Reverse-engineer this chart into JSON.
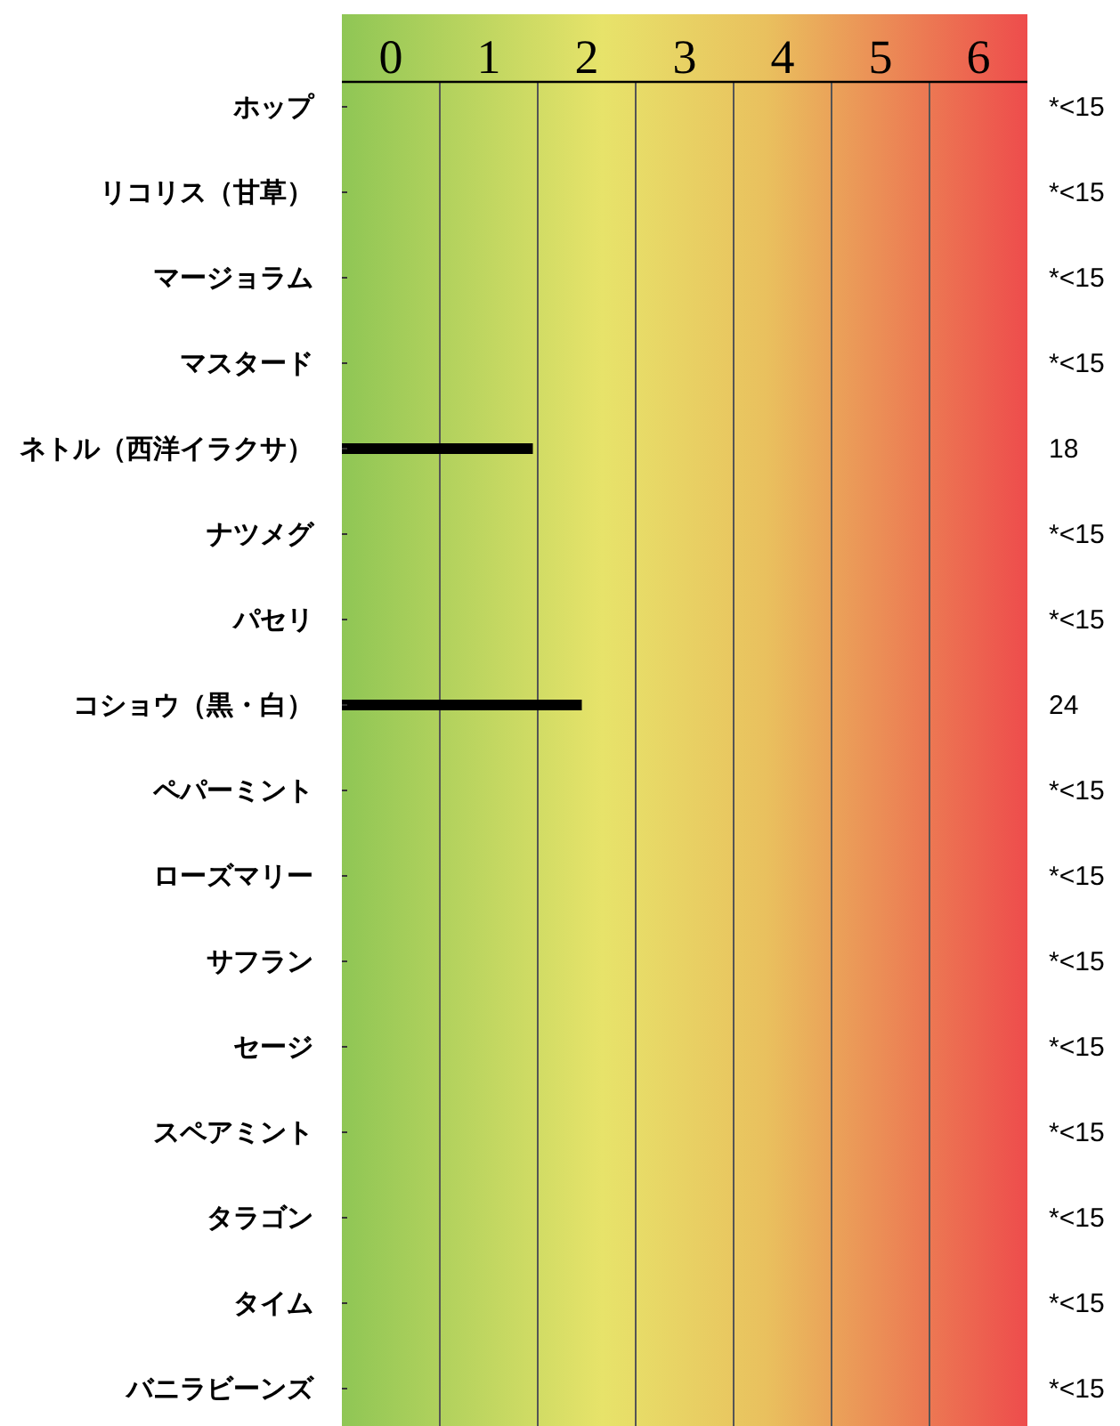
{
  "chart_data": {
    "type": "bar",
    "orientation": "horizontal",
    "categories": [
      "ホップ",
      "リコリス（甘草）",
      "マージョラム",
      "マスタード",
      "ネトル（西洋イラクサ）",
      "ナツメグ",
      "パセリ",
      "コショウ（黒・白）",
      "ペパーミント",
      "ローズマリー",
      "サフラン",
      "セージ",
      "スペアミント",
      "タラゴン",
      "タイム",
      "バニラビーンズ"
    ],
    "values": [
      0,
      0,
      0,
      0,
      1.95,
      0,
      0,
      2.45,
      0,
      0,
      0,
      0,
      0,
      0,
      0,
      0
    ],
    "annotations": [
      "*<15",
      "*<15",
      "*<15",
      "*<15",
      "18",
      "*<15",
      "*<15",
      "24",
      "*<15",
      "*<15",
      "*<15",
      "*<15",
      "*<15",
      "*<15",
      "*<15",
      "*<15"
    ],
    "color": "#000000",
    "xlim": [
      0,
      7
    ],
    "xticks": [
      {
        "value": 0,
        "label": null
      },
      {
        "value": 0.5,
        "label": "0"
      },
      {
        "value": 1,
        "label": null
      },
      {
        "value": 1.5,
        "label": "1"
      },
      {
        "value": 2,
        "label": null
      },
      {
        "value": 2.5,
        "label": "2"
      },
      {
        "value": 3,
        "label": null
      },
      {
        "value": 3.5,
        "label": "3"
      },
      {
        "value": 4,
        "label": null
      },
      {
        "value": 4.5,
        "label": "4"
      },
      {
        "value": 5,
        "label": null
      },
      {
        "value": 5.5,
        "label": "5"
      },
      {
        "value": 6,
        "label": null
      },
      {
        "value": 6.5,
        "label": "6"
      },
      {
        "value": 7,
        "label": null
      }
    ],
    "grid": "x"
  }
}
